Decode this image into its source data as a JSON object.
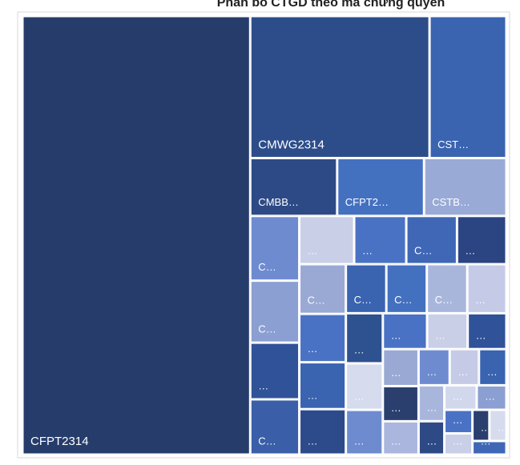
{
  "chart_data": {
    "type": "treemap",
    "title": "Phân bổ CTGD theo mã chứng quyền",
    "categories": [
      "CFPT2314",
      "CMWG2314",
      "CST…",
      "CMBB…",
      "CFPT2…",
      "CSTB…",
      "C…",
      "C…",
      "…",
      "C…",
      "…",
      "…",
      "C…",
      "…",
      "C…",
      "…",
      "…",
      "…",
      "C…",
      "C…",
      "C…",
      "…",
      "…",
      "…",
      "…",
      "…",
      "…",
      "…",
      "…",
      "…",
      "…",
      "…",
      "…",
      "…",
      "…",
      "…",
      "…",
      "…",
      "…",
      "…",
      "…",
      "…",
      "…"
    ],
    "values": [
      151,
      38.5,
      16.5,
      7.6,
      7.6,
      7.2,
      4.8,
      4.6,
      4.2,
      4.1,
      4.0,
      3.8,
      3.7,
      3.6,
      3.5,
      3.4,
      3.3,
      3.2,
      3.0,
      3.0,
      3.0,
      2.9,
      2.8,
      2.6,
      2.5,
      2.4,
      2.2,
      2.1,
      2.0,
      1.9,
      1.8,
      1.7,
      1.6,
      1.5,
      1.4,
      1.3,
      1.2,
      1.1,
      1.0,
      0.9,
      0.8,
      0.8,
      0.7
    ],
    "colors": [
      "#263d6b",
      "#2d4d8a",
      "#3a63b0",
      "#2e4a86",
      "#4470c0",
      "#9aaad6",
      "#6f8bd0",
      "#8c9fd2",
      "#2f5298",
      "#3a5fa8",
      "#c9cfe6",
      "#4a72c4",
      "#3f67b5",
      "#2b4482",
      "#9aa9d4",
      "#4a72c4",
      "#3a63b0",
      "#2d4a8a",
      "#3a63b0",
      "#4470c0",
      "#a9b6dc",
      "#c5cbe6",
      "#2e5190",
      "#d6dbed",
      "#6f8bd0",
      "#4a72c4",
      "#c9cfe6",
      "#2f5298",
      "#9aa9d4",
      "#2b3f6e",
      "#aab6de",
      "#6f8bd0",
      "#c5cbe6",
      "#3a63b0",
      "#a9b6dc",
      "#2e4a86",
      "#d2d8ec",
      "#8c9fd2",
      "#4a72c4",
      "#c9cfe6",
      "#2b3f6e",
      "#d6dbed",
      "#3f67b5"
    ]
  }
}
